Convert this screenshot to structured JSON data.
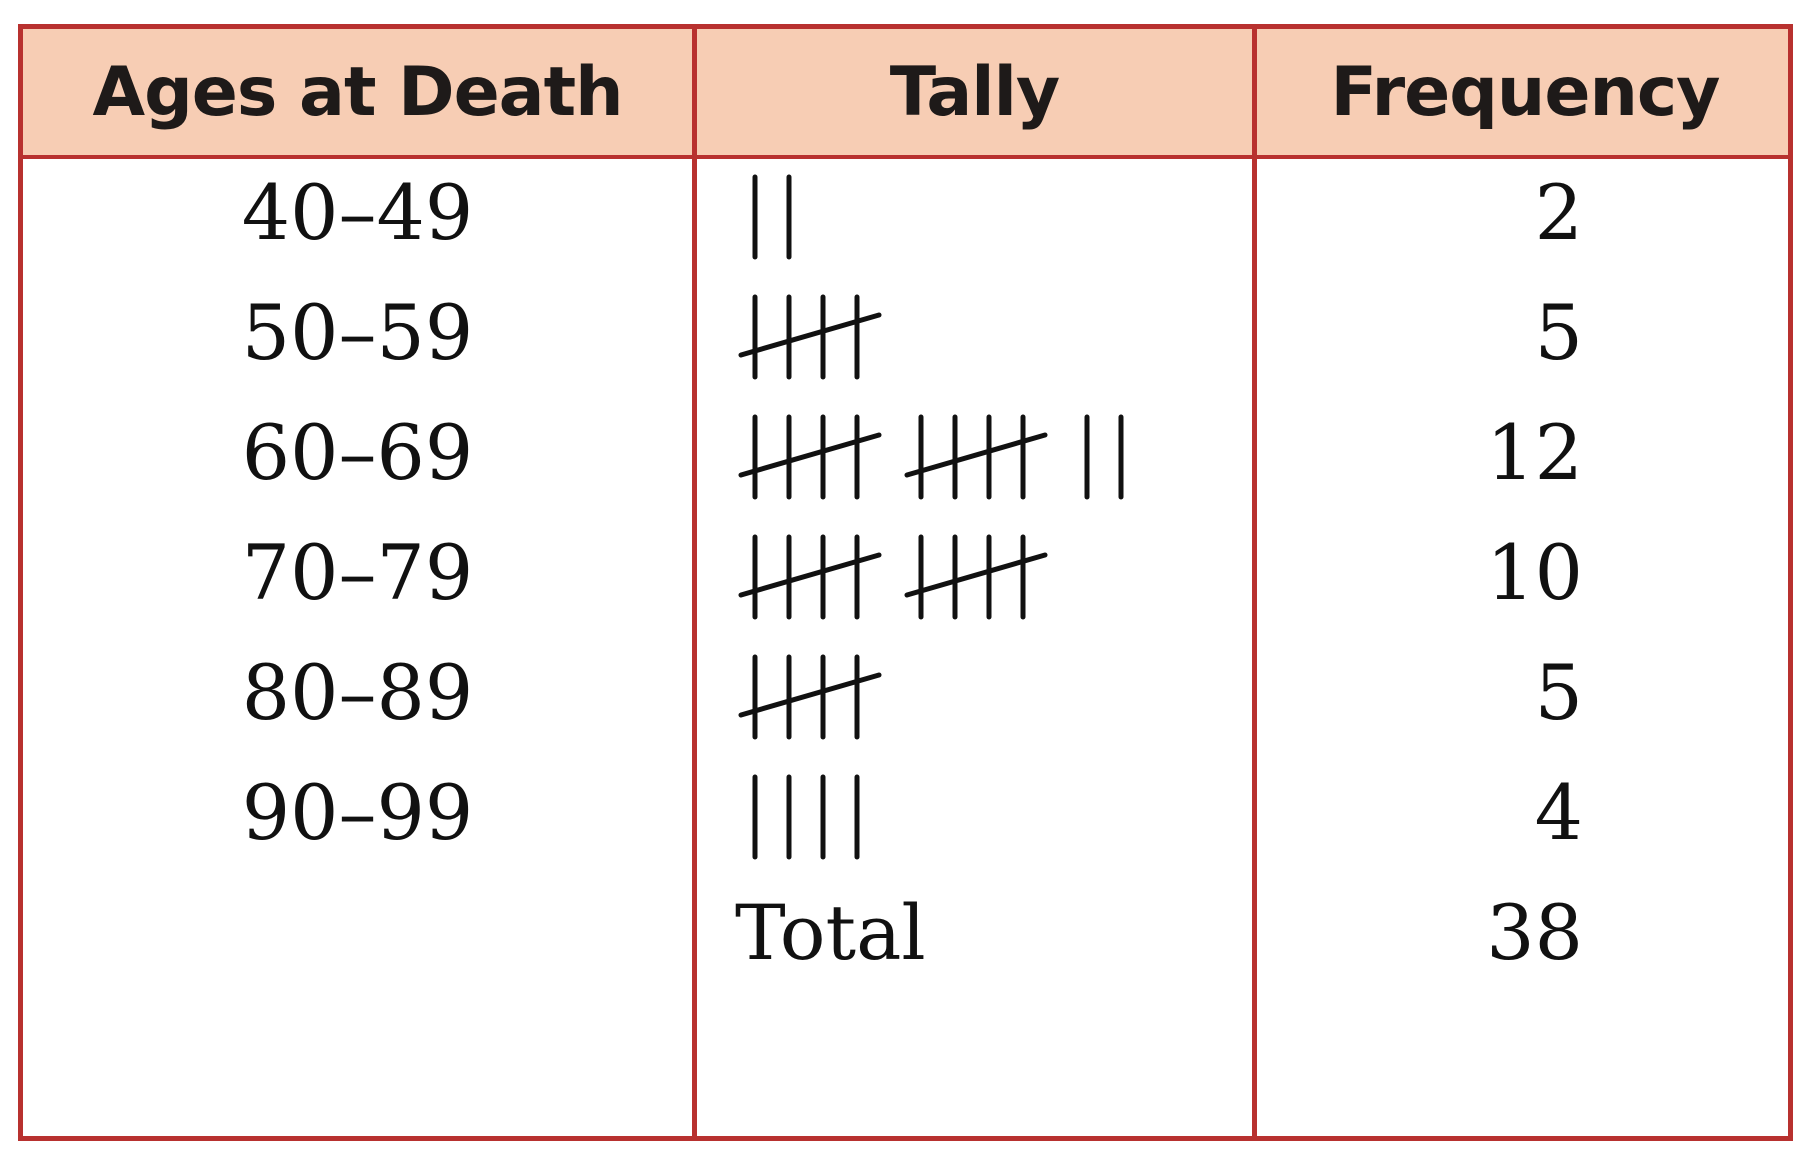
{
  "table": {
    "headers": {
      "ages": "Ages at Death",
      "tally": "Tally",
      "frequency": "Frequency"
    },
    "rows": [
      {
        "age": "40–49",
        "count": 2,
        "frequency": "2"
      },
      {
        "age": "50–59",
        "count": 5,
        "frequency": "5"
      },
      {
        "age": "60–69",
        "count": 12,
        "frequency": "12"
      },
      {
        "age": "70–79",
        "count": 10,
        "frequency": "10"
      },
      {
        "age": "80–89",
        "count": 5,
        "frequency": "5"
      },
      {
        "age": "90–99",
        "count": 4,
        "frequency": "4"
      }
    ],
    "total_label": "Total",
    "total_value": "38"
  },
  "colors": {
    "border": "#b8312f",
    "header_fill": "#f7cdb4",
    "text": "#111111"
  }
}
